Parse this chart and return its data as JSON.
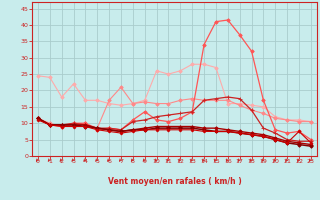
{
  "xlabel": "Vent moyen/en rafales ( km/h )",
  "xlim": [
    -0.5,
    23.5
  ],
  "ylim": [
    0,
    47
  ],
  "yticks": [
    0,
    5,
    10,
    15,
    20,
    25,
    30,
    35,
    40,
    45
  ],
  "xticks": [
    0,
    1,
    2,
    3,
    4,
    5,
    6,
    7,
    8,
    9,
    10,
    11,
    12,
    13,
    14,
    15,
    16,
    17,
    18,
    19,
    20,
    21,
    22,
    23
  ],
  "bg_color": "#c8ecec",
  "grid_color": "#aacccc",
  "series": [
    {
      "name": "line1_lightest",
      "color": "#ffaaaa",
      "lw": 0.8,
      "marker": "D",
      "markersize": 1.8,
      "values": [
        24.5,
        24.0,
        18.0,
        22.0,
        17.0,
        17.0,
        16.0,
        15.5,
        16.0,
        17.0,
        26.0,
        25.0,
        26.0,
        28.0,
        28.0,
        27.0,
        16.0,
        16.0,
        15.5,
        15.0,
        12.0,
        11.0,
        11.0,
        10.5
      ]
    },
    {
      "name": "line2_light",
      "color": "#ff8888",
      "lw": 0.8,
      "marker": "D",
      "markersize": 1.8,
      "values": [
        11.5,
        10.0,
        9.0,
        9.5,
        10.0,
        8.5,
        17.0,
        21.0,
        16.0,
        16.5,
        16.0,
        16.0,
        17.0,
        17.5,
        17.0,
        17.0,
        17.0,
        15.5,
        14.0,
        13.0,
        11.5,
        11.0,
        10.5,
        10.5
      ]
    },
    {
      "name": "line3_peak",
      "color": "#ff5555",
      "lw": 0.9,
      "marker": "D",
      "markersize": 1.8,
      "values": [
        11.5,
        9.5,
        9.0,
        10.0,
        10.0,
        8.0,
        8.5,
        8.0,
        11.0,
        13.5,
        11.0,
        10.5,
        11.5,
        13.5,
        34.0,
        41.0,
        41.5,
        37.0,
        32.0,
        17.0,
        8.0,
        7.0,
        7.5,
        5.0
      ]
    },
    {
      "name": "line4_mid",
      "color": "#cc2222",
      "lw": 0.9,
      "marker": "+",
      "markersize": 2.8,
      "values": [
        11.5,
        9.5,
        9.5,
        10.0,
        9.5,
        8.5,
        8.5,
        8.0,
        10.5,
        11.0,
        12.0,
        12.5,
        13.0,
        13.5,
        17.0,
        17.5,
        18.0,
        17.5,
        14.0,
        8.5,
        7.0,
        5.0,
        4.5,
        4.5
      ]
    },
    {
      "name": "line5_dark",
      "color": "#aa0000",
      "lw": 1.0,
      "marker": "D",
      "markersize": 1.8,
      "values": [
        11.5,
        9.5,
        9.5,
        9.5,
        9.5,
        8.5,
        8.0,
        7.5,
        8.0,
        8.5,
        9.0,
        9.0,
        9.0,
        9.0,
        8.5,
        8.5,
        8.0,
        7.5,
        7.0,
        6.5,
        5.5,
        4.5,
        4.0,
        3.5
      ]
    },
    {
      "name": "line6_darkest",
      "color": "#880000",
      "lw": 1.1,
      "marker": "D",
      "markersize": 1.8,
      "values": [
        11.5,
        9.5,
        9.5,
        9.5,
        9.0,
        8.5,
        8.0,
        7.5,
        8.0,
        8.0,
        8.5,
        8.5,
        8.5,
        8.5,
        8.0,
        7.5,
        7.5,
        7.0,
        6.5,
        6.0,
        5.0,
        4.0,
        3.5,
        3.0
      ]
    },
    {
      "name": "line7_bottom",
      "color": "#cc0000",
      "lw": 0.8,
      "marker": "D",
      "markersize": 1.5,
      "values": [
        11.0,
        9.5,
        9.0,
        9.0,
        9.0,
        8.0,
        7.5,
        7.0,
        7.5,
        8.0,
        8.0,
        8.0,
        8.0,
        8.0,
        7.5,
        7.5,
        7.5,
        7.0,
        6.5,
        6.0,
        5.0,
        4.0,
        7.5,
        4.0
      ]
    }
  ],
  "arrow_color": "#cc2222",
  "tick_color": "#cc2222",
  "label_color": "#cc2222",
  "axis_color": "#cc2222"
}
